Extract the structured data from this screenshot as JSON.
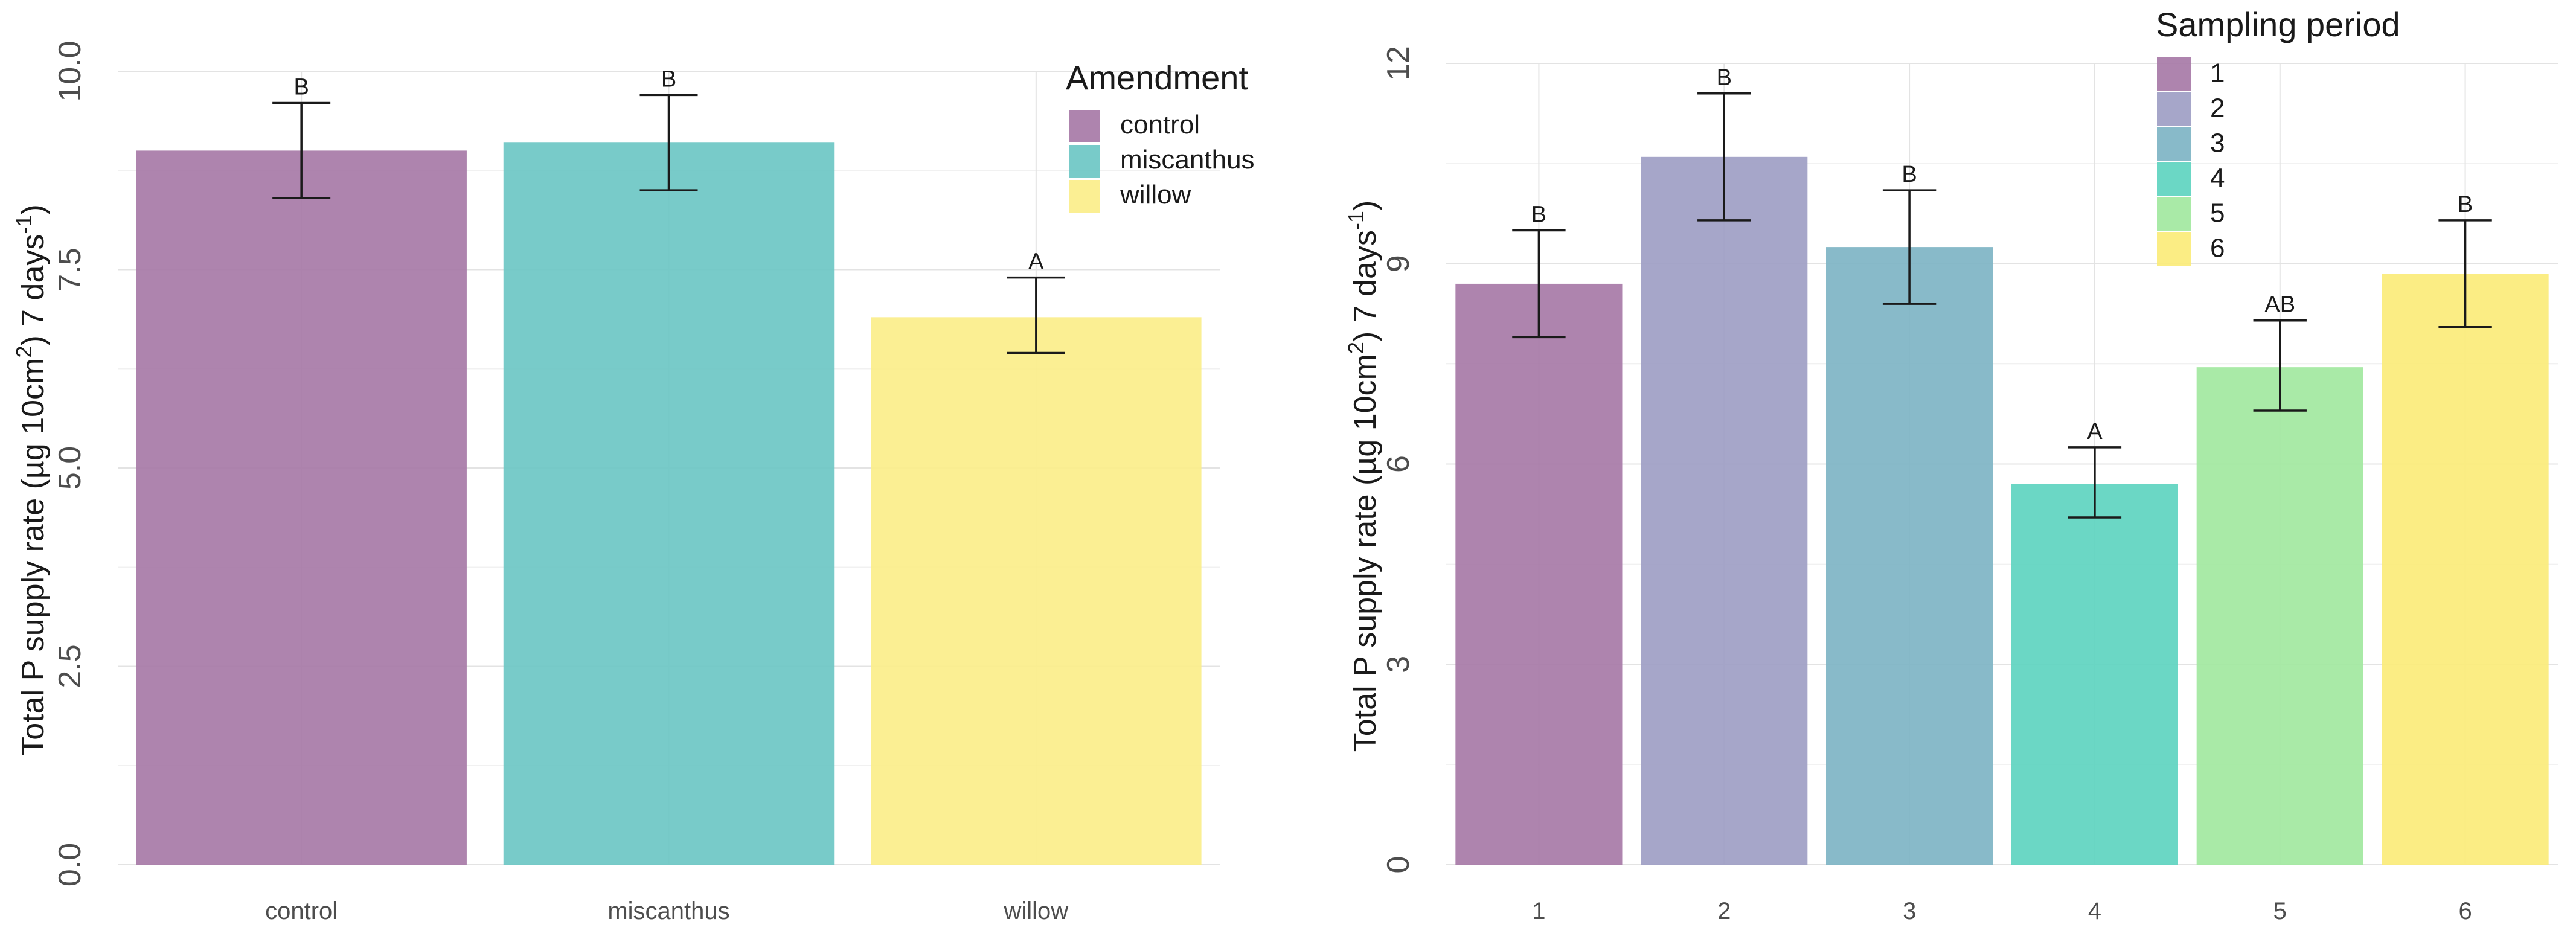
{
  "colors": {
    "c1": "#a779a7",
    "c2": "#9e9ec4",
    "c3": "#7eb4c4",
    "c4": "#5ed4c0",
    "c5": "#a2e8a0",
    "c6": "#fbeb7a",
    "miscanthus": "#6cc7c4",
    "willow": "#fbee8a"
  },
  "chart_data": [
    {
      "type": "bar",
      "title": "",
      "xlabel": "",
      "ylabel_main": "Total P supply rate (µg 10cm",
      "ylabel_sup1": "2",
      "ylabel_mid": ") 7 days",
      "ylabel_sup2": "-1",
      "ylabel_end": ")",
      "ylim": [
        0,
        10
      ],
      "yticks": [
        0,
        2.5,
        5,
        7.5,
        10
      ],
      "ytick_labels": [
        "0.0",
        "2.5",
        "5.0",
        "7.5",
        "10.0"
      ],
      "categories": [
        "control",
        "miscanthus",
        "willow"
      ],
      "values": [
        9.0,
        9.1,
        6.9
      ],
      "err_low": [
        8.4,
        8.5,
        6.45
      ],
      "err_high": [
        9.6,
        9.7,
        7.4
      ],
      "significance": [
        "B",
        "B",
        "A"
      ],
      "bar_colors": [
        "c1",
        "miscanthus",
        "willow"
      ],
      "legend": {
        "title": "Amendment",
        "position": "top-right",
        "entries": [
          {
            "label": "control",
            "color": "c1"
          },
          {
            "label": "miscanthus",
            "color": "miscanthus"
          },
          {
            "label": "willow",
            "color": "willow"
          }
        ]
      }
    },
    {
      "type": "bar",
      "title": "",
      "xlabel": "",
      "ylabel_main": "Total P supply rate (µg 10cm",
      "ylabel_sup1": "2",
      "ylabel_mid": ") 7 days",
      "ylabel_sup2": "-1",
      "ylabel_end": ")",
      "ylim": [
        0,
        12
      ],
      "yticks": [
        0,
        3,
        6,
        9,
        12
      ],
      "ytick_labels": [
        "0",
        "3",
        "6",
        "9",
        "12"
      ],
      "categories": [
        "1",
        "2",
        "3",
        "4",
        "5",
        "6"
      ],
      "values": [
        8.7,
        10.6,
        9.25,
        5.7,
        7.45,
        8.85
      ],
      "err_low": [
        7.9,
        9.65,
        8.4,
        5.2,
        6.8,
        8.05
      ],
      "err_high": [
        9.5,
        11.55,
        10.1,
        6.25,
        8.15,
        9.65
      ],
      "significance": [
        "B",
        "B",
        "B",
        "A",
        "AB",
        "B"
      ],
      "bar_colors": [
        "c1",
        "c2",
        "c3",
        "c4",
        "c5",
        "c6"
      ],
      "legend": {
        "title": "Sampling period",
        "position": "top-right",
        "entries": [
          {
            "label": "1",
            "color": "c1"
          },
          {
            "label": "2",
            "color": "c2"
          },
          {
            "label": "3",
            "color": "c3"
          },
          {
            "label": "4",
            "color": "c4"
          },
          {
            "label": "5",
            "color": "c5"
          },
          {
            "label": "6",
            "color": "c6"
          }
        ]
      }
    }
  ]
}
